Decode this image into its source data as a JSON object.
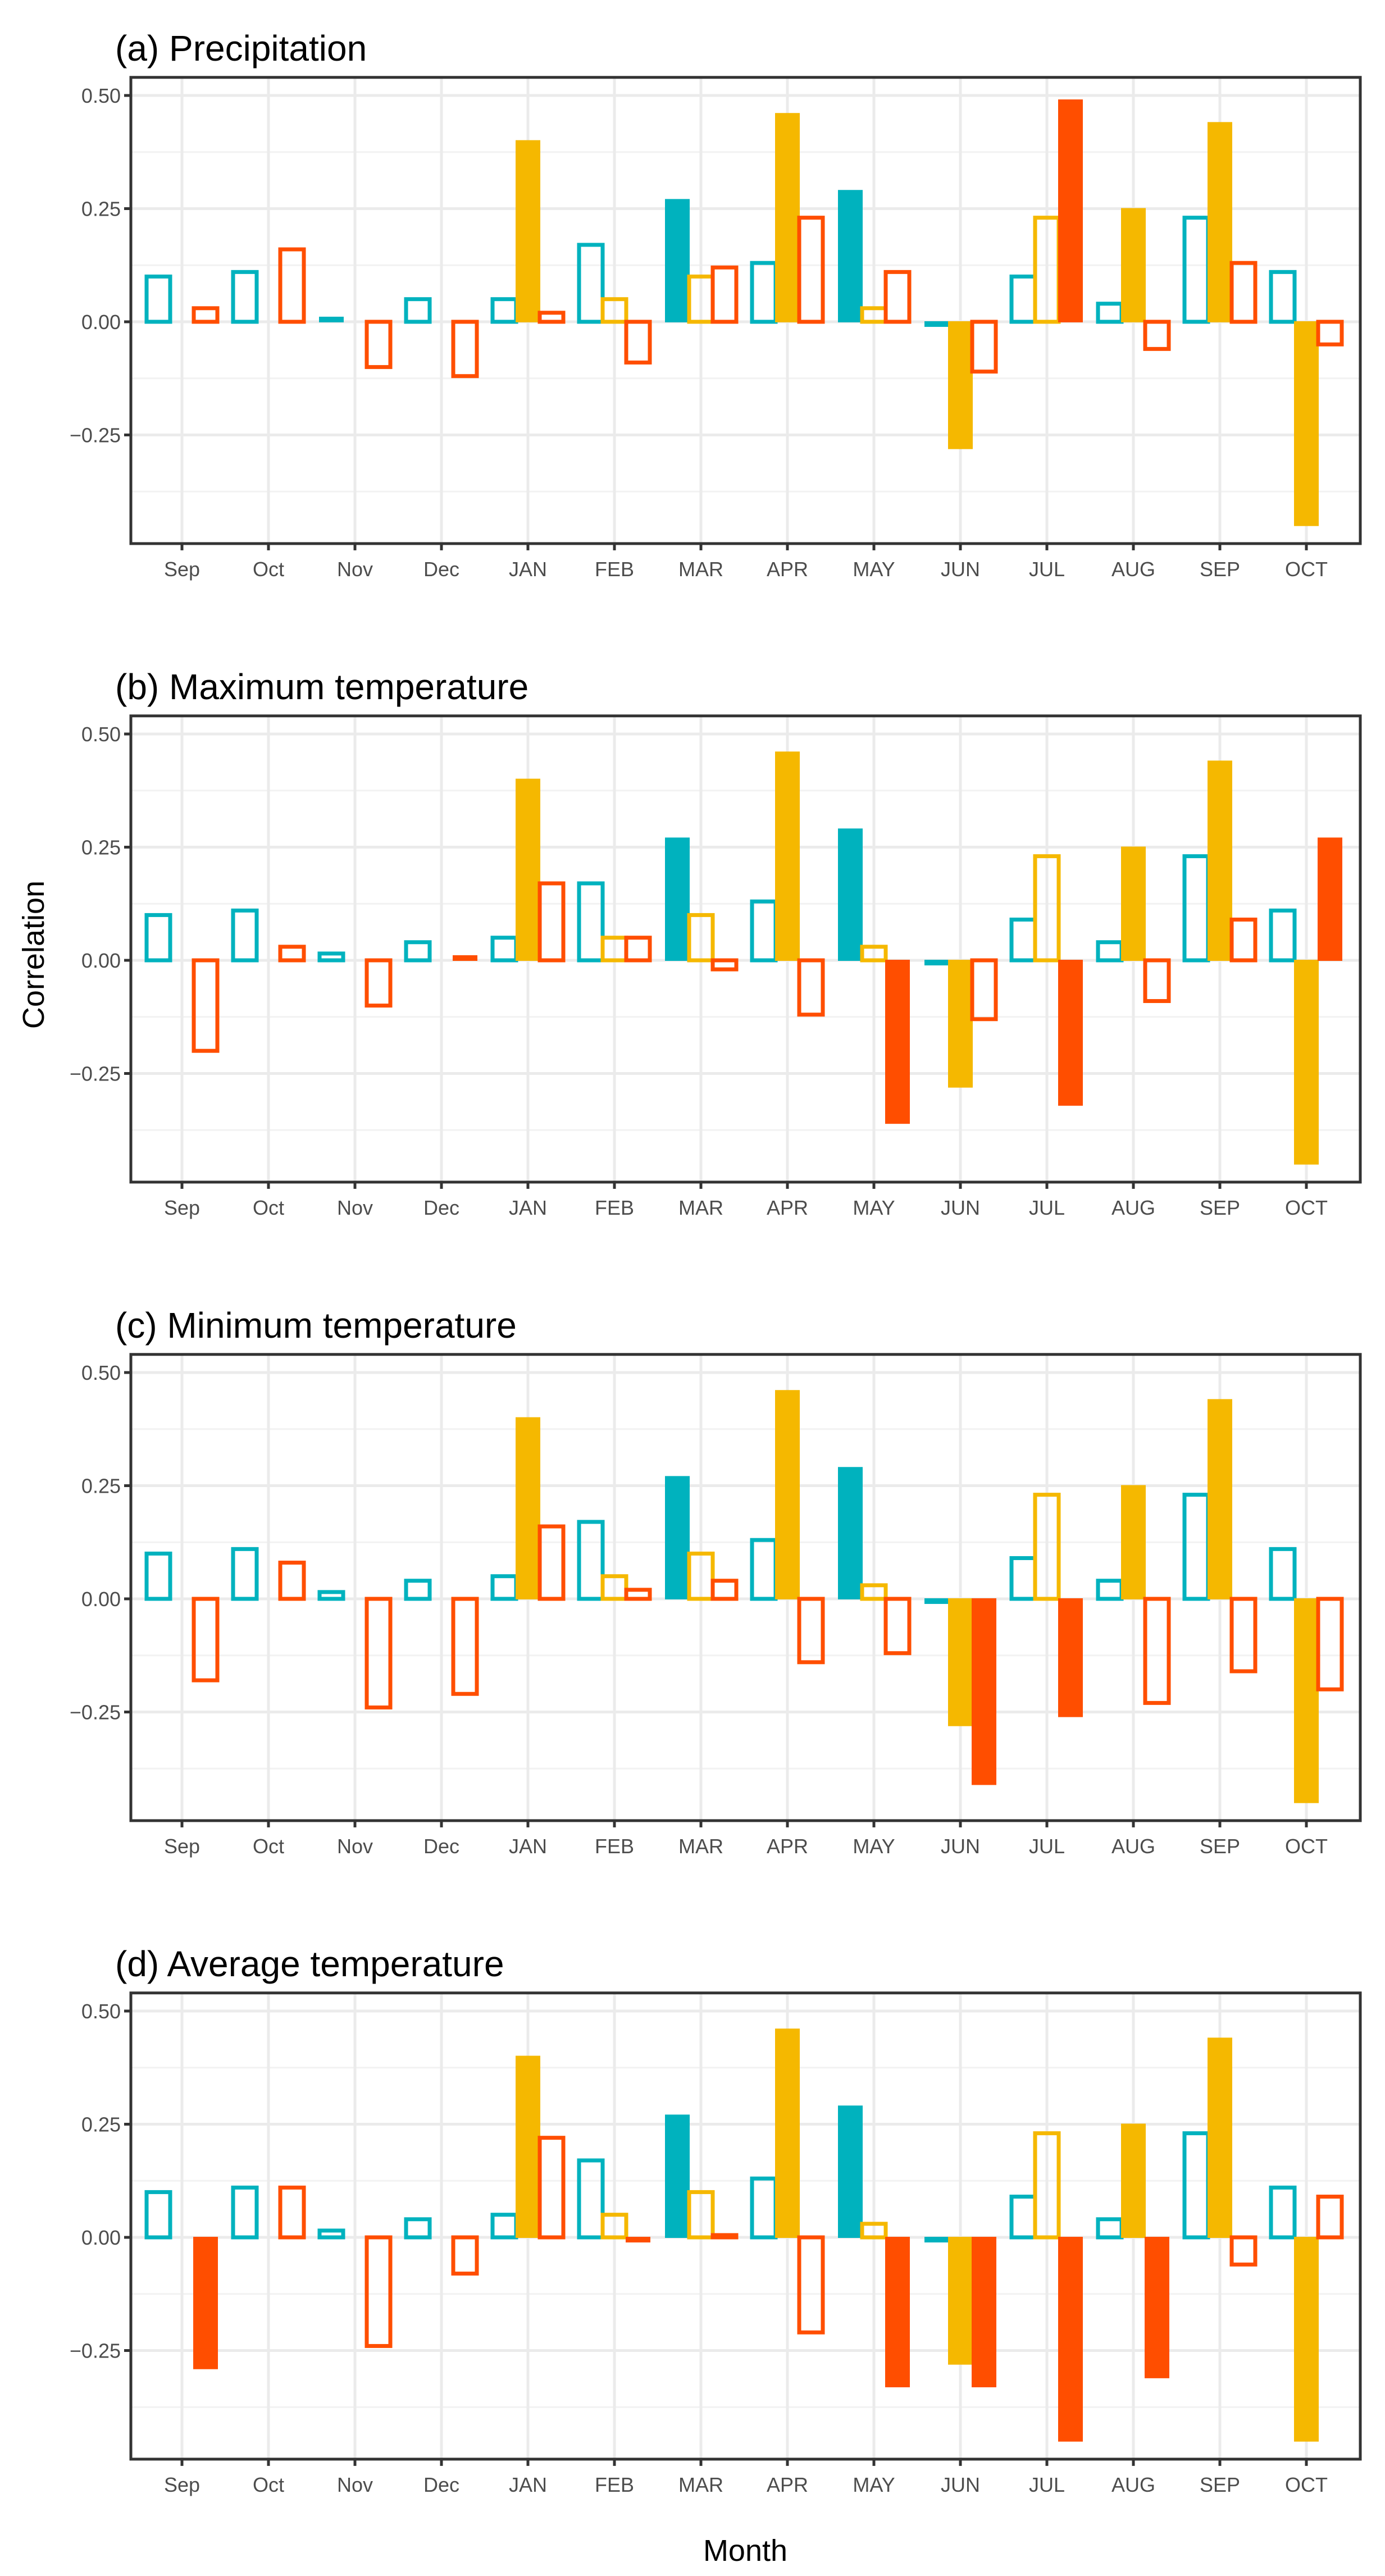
{
  "chart_data": [
    {
      "type": "bar",
      "title": "(a) Precipitation",
      "categories": [
        "Sep",
        "Oct",
        "Nov",
        "Dec",
        "JAN",
        "FEB",
        "MAR",
        "APR",
        "MAY",
        "JUN",
        "JUL",
        "AUG",
        "SEP",
        "OCT"
      ],
      "ylim": [
        -0.49,
        0.54
      ],
      "yticks": [
        "0.50",
        "0.25",
        "0.00",
        "−0.25"
      ],
      "series": [
        {
          "key": "cyan",
          "color": "#00B2BE",
          "values": [
            0.1,
            0.11,
            0.01,
            0.05,
            0.05,
            0.17,
            0.27,
            0.13,
            0.29,
            -0.01,
            0.1,
            0.04,
            0.23,
            0.11
          ],
          "filled": [
            false,
            false,
            true,
            false,
            false,
            false,
            true,
            false,
            true,
            true,
            false,
            false,
            false,
            false
          ]
        },
        {
          "key": "yellow",
          "color": "#F5B800",
          "values": [
            null,
            null,
            null,
            null,
            0.4,
            0.05,
            0.1,
            0.46,
            0.03,
            -0.28,
            0.23,
            0.25,
            0.44,
            -0.45
          ],
          "filled": [
            false,
            false,
            false,
            false,
            true,
            false,
            false,
            true,
            false,
            true,
            false,
            true,
            true,
            true
          ]
        },
        {
          "key": "red",
          "color": "#FF4E00",
          "values": [
            0.03,
            0.16,
            -0.1,
            -0.12,
            0.02,
            -0.09,
            0.12,
            0.23,
            0.11,
            -0.11,
            0.49,
            -0.06,
            0.13,
            -0.05
          ],
          "filled": [
            false,
            false,
            false,
            false,
            false,
            false,
            false,
            false,
            false,
            false,
            true,
            false,
            false,
            false
          ]
        }
      ]
    },
    {
      "type": "bar",
      "title": "(b) Maximum temperature",
      "categories": [
        "Sep",
        "Oct",
        "Nov",
        "Dec",
        "JAN",
        "FEB",
        "MAR",
        "APR",
        "MAY",
        "JUN",
        "JUL",
        "AUG",
        "SEP",
        "OCT"
      ],
      "ylim": [
        -0.49,
        0.54
      ],
      "yticks": [
        "0.50",
        "0.25",
        "0.00",
        "−0.25"
      ],
      "series": [
        {
          "key": "cyan",
          "color": "#00B2BE",
          "values": [
            0.1,
            0.11,
            0.015,
            0.04,
            0.05,
            0.17,
            0.27,
            0.13,
            0.29,
            -0.01,
            0.09,
            0.04,
            0.23,
            0.11
          ],
          "filled": [
            false,
            false,
            false,
            false,
            false,
            false,
            true,
            false,
            true,
            true,
            false,
            false,
            false,
            false
          ]
        },
        {
          "key": "yellow",
          "color": "#F5B800",
          "values": [
            null,
            null,
            null,
            null,
            0.4,
            0.05,
            0.1,
            0.46,
            0.03,
            -0.28,
            0.23,
            0.25,
            0.44,
            -0.45
          ],
          "filled": [
            false,
            false,
            false,
            false,
            true,
            false,
            false,
            true,
            false,
            true,
            false,
            true,
            true,
            true
          ]
        },
        {
          "key": "red",
          "color": "#FF4E00",
          "values": [
            -0.2,
            0.03,
            -0.1,
            0.01,
            0.17,
            0.05,
            -0.02,
            -0.12,
            -0.36,
            -0.13,
            -0.32,
            -0.09,
            0.09,
            0.27
          ],
          "filled": [
            false,
            false,
            false,
            true,
            false,
            false,
            false,
            false,
            true,
            false,
            true,
            false,
            false,
            true
          ]
        }
      ]
    },
    {
      "type": "bar",
      "title": "(c) Minimum temperature",
      "categories": [
        "Sep",
        "Oct",
        "Nov",
        "Dec",
        "JAN",
        "FEB",
        "MAR",
        "APR",
        "MAY",
        "JUN",
        "JUL",
        "AUG",
        "SEP",
        "OCT"
      ],
      "ylim": [
        -0.49,
        0.54
      ],
      "yticks": [
        "0.50",
        "0.25",
        "0.00",
        "−0.25"
      ],
      "series": [
        {
          "key": "cyan",
          "color": "#00B2BE",
          "values": [
            0.1,
            0.11,
            0.015,
            0.04,
            0.05,
            0.17,
            0.27,
            0.13,
            0.29,
            -0.01,
            0.09,
            0.04,
            0.23,
            0.11
          ],
          "filled": [
            false,
            false,
            false,
            false,
            false,
            false,
            true,
            false,
            true,
            true,
            false,
            false,
            false,
            false
          ]
        },
        {
          "key": "yellow",
          "color": "#F5B800",
          "values": [
            null,
            null,
            null,
            null,
            0.4,
            0.05,
            0.1,
            0.46,
            0.03,
            -0.28,
            0.23,
            0.25,
            0.44,
            -0.45
          ],
          "filled": [
            false,
            false,
            false,
            false,
            true,
            false,
            false,
            true,
            false,
            true,
            false,
            true,
            true,
            true
          ]
        },
        {
          "key": "red",
          "color": "#FF4E00",
          "values": [
            -0.18,
            0.08,
            -0.24,
            -0.21,
            0.16,
            0.02,
            0.04,
            -0.14,
            -0.12,
            -0.41,
            -0.26,
            -0.23,
            -0.16,
            -0.2
          ],
          "filled": [
            false,
            false,
            false,
            false,
            false,
            false,
            false,
            false,
            false,
            true,
            true,
            false,
            false,
            false
          ]
        }
      ]
    },
    {
      "type": "bar",
      "title": "(d) Average temperature",
      "categories": [
        "Sep",
        "Oct",
        "Nov",
        "Dec",
        "JAN",
        "FEB",
        "MAR",
        "APR",
        "MAY",
        "JUN",
        "JUL",
        "AUG",
        "SEP",
        "OCT"
      ],
      "ylim": [
        -0.49,
        0.54
      ],
      "yticks": [
        "0.50",
        "0.25",
        "0.00",
        "−0.25"
      ],
      "series": [
        {
          "key": "cyan",
          "color": "#00B2BE",
          "values": [
            0.1,
            0.11,
            0.015,
            0.04,
            0.05,
            0.17,
            0.27,
            0.13,
            0.29,
            -0.01,
            0.09,
            0.04,
            0.23,
            0.11
          ],
          "filled": [
            false,
            false,
            false,
            false,
            false,
            false,
            true,
            false,
            true,
            true,
            false,
            false,
            false,
            false
          ]
        },
        {
          "key": "yellow",
          "color": "#F5B800",
          "values": [
            null,
            null,
            null,
            null,
            0.4,
            0.05,
            0.1,
            0.46,
            0.03,
            -0.28,
            0.23,
            0.25,
            0.44,
            -0.45
          ],
          "filled": [
            false,
            false,
            false,
            false,
            true,
            false,
            false,
            true,
            false,
            true,
            false,
            true,
            true,
            true
          ]
        },
        {
          "key": "red",
          "color": "#FF4E00",
          "values": [
            -0.29,
            0.11,
            -0.24,
            -0.08,
            0.22,
            -0.01,
            0.005,
            -0.21,
            -0.33,
            -0.33,
            -0.45,
            -0.31,
            -0.06,
            0.09
          ],
          "filled": [
            true,
            false,
            false,
            false,
            false,
            true,
            false,
            false,
            true,
            true,
            true,
            true,
            false,
            false
          ]
        }
      ]
    }
  ],
  "axes": {
    "xlabel": "Month",
    "ylabel": "Correlation"
  }
}
